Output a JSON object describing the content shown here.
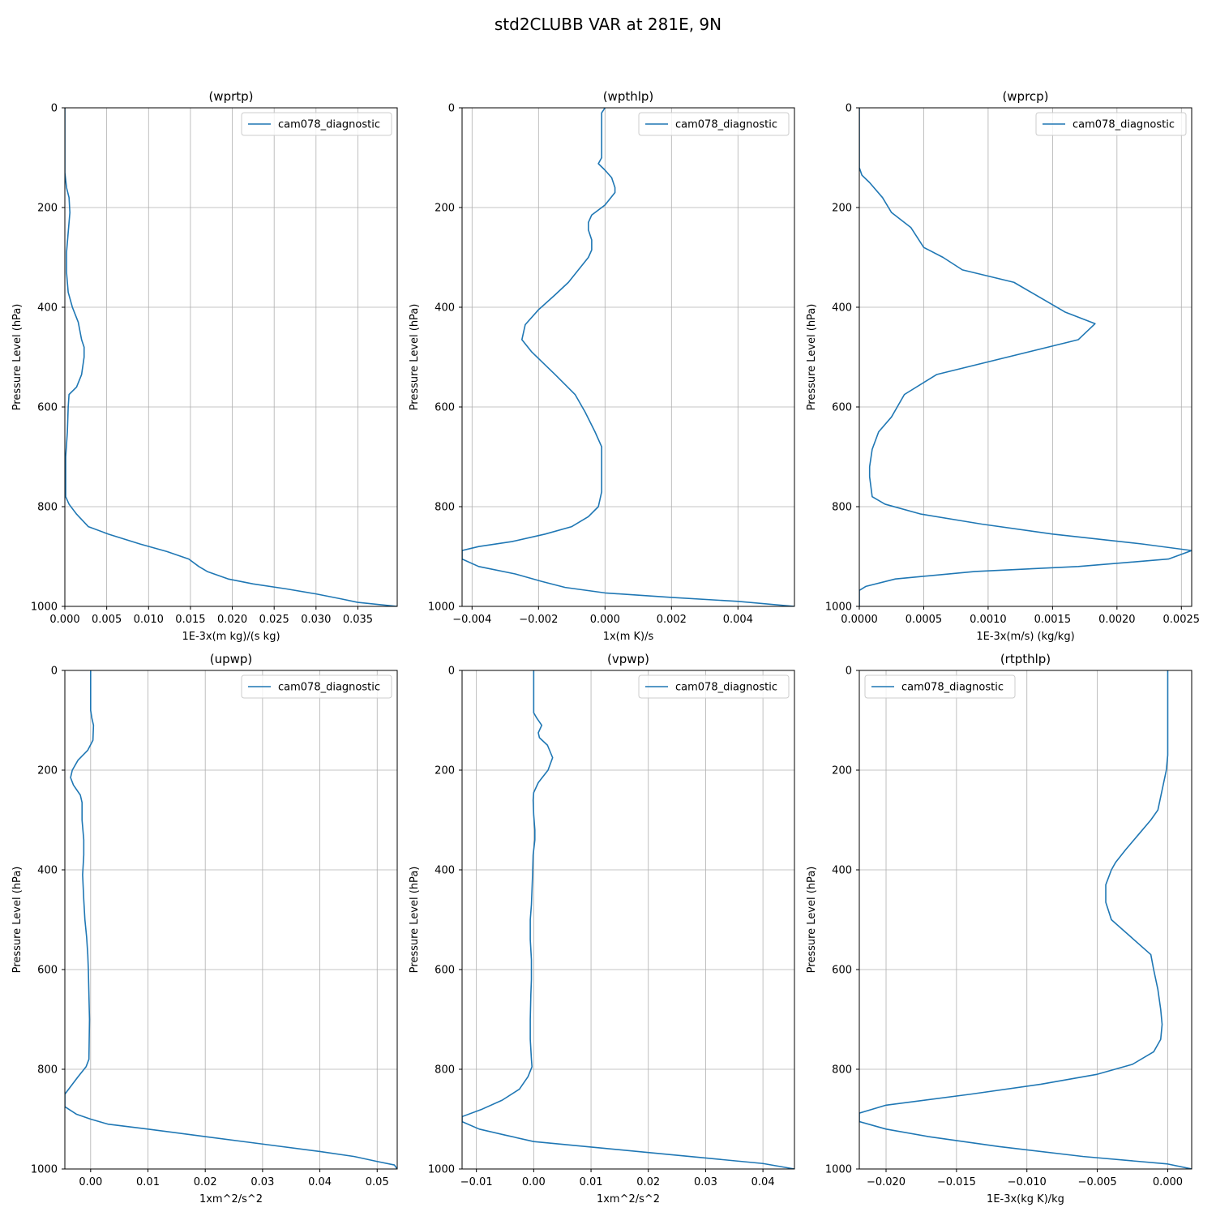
{
  "figure": {
    "suptitle": "std2CLUBB VAR at 281E, 9N"
  },
  "colors": {
    "line": "#1f77b4",
    "grid": "#b0b0b0",
    "axis": "#000000"
  },
  "chart_data": [
    {
      "type": "line",
      "title": "(wprtp)",
      "xlabel": "1E-3x(m kg)/(s kg)",
      "ylabel": "Pressure Level (hPa)",
      "xlim": [
        0,
        0.0397
      ],
      "ylim": [
        1000,
        0
      ],
      "xticks": [
        0,
        0.005,
        0.01,
        0.015,
        0.02,
        0.025,
        0.03,
        0.035
      ],
      "xticklabels": [
        "0.000",
        "0.005",
        "0.010",
        "0.015",
        "0.020",
        "0.025",
        "0.030",
        "0.035"
      ],
      "yticks": [
        0,
        200,
        400,
        600,
        800,
        1000
      ],
      "yticklabels": [
        "0",
        "200",
        "400",
        "600",
        "800",
        "1000"
      ],
      "legend": "top-right",
      "grid": true,
      "series": [
        {
          "name": "cam078_diagnostic",
          "x": [
            0,
            0,
            0.0002,
            0.0005,
            0.0006,
            0.0004,
            0.0002,
            0.0002,
            0.0004,
            0.0009,
            0.0016,
            0.002,
            0.0023,
            0.0023,
            0.002,
            0.0014,
            0.0005,
            0.0004,
            0.0003,
            0.0001,
            0.0001,
            0.0005,
            0.0014,
            0.0028,
            0.0052,
            0.009,
            0.0122,
            0.0148,
            0.016,
            0.017,
            0.0195,
            0.0225,
            0.0265,
            0.03,
            0.033,
            0.035,
            0.0397
          ],
          "y": [
            0,
            130,
            160,
            180,
            210,
            250,
            290,
            330,
            370,
            400,
            430,
            465,
            480,
            500,
            535,
            560,
            575,
            600,
            650,
            700,
            780,
            795,
            815,
            840,
            855,
            875,
            890,
            905,
            920,
            930,
            945,
            955,
            965,
            975,
            985,
            992,
            1000
          ]
        }
      ]
    },
    {
      "type": "line",
      "title": "(wpthlp)",
      "xlabel": "1x(m K)/s",
      "ylabel": "Pressure Level (hPa)",
      "xlim": [
        -0.0043,
        0.0057
      ],
      "ylim": [
        1000,
        0
      ],
      "xticks": [
        -0.004,
        -0.002,
        0,
        0.002,
        0.004
      ],
      "xticklabels": [
        "−0.004",
        "−0.002",
        "0.000",
        "0.002",
        "0.004"
      ],
      "yticks": [
        0,
        200,
        400,
        600,
        800,
        1000
      ],
      "yticklabels": [
        "0",
        "200",
        "400",
        "600",
        "800",
        "1000"
      ],
      "legend": "top-right",
      "grid": true,
      "series": [
        {
          "name": "cam078_diagnostic",
          "x": [
            0,
            -0.0001,
            -0.0001,
            -0.0001,
            -0.0001,
            -0.0002,
            0,
            0.0002,
            0.0003,
            0.0003,
            0,
            -0.0004,
            -0.0005,
            -0.0005,
            -0.0004,
            -0.0004,
            -0.0005,
            -0.0008,
            -0.0011,
            -0.0015,
            -0.002,
            -0.0024,
            -0.0025,
            -0.0022,
            -0.0015,
            -0.0009,
            -0.0006,
            -0.0003,
            -0.0001,
            -0.0001,
            -0.0001,
            -0.0002,
            -0.0005,
            -0.001,
            -0.0018,
            -0.0028,
            -0.0038,
            -0.0043,
            -0.0043,
            -0.0038,
            -0.0027,
            -0.0019,
            -0.0012,
            0,
            0.002,
            0.004,
            0.0057
          ],
          "y": [
            0,
            10,
            50,
            90,
            100,
            112,
            125,
            140,
            160,
            170,
            195,
            215,
            230,
            245,
            265,
            285,
            300,
            325,
            350,
            375,
            405,
            435,
            465,
            490,
            535,
            575,
            610,
            650,
            680,
            720,
            770,
            800,
            820,
            840,
            855,
            870,
            880,
            888,
            905,
            920,
            935,
            950,
            962,
            973,
            982,
            990,
            1000
          ]
        }
      ]
    },
    {
      "type": "line",
      "title": "(wprcp)",
      "xlabel": "1E-3x(m/s) (kg/kg)",
      "ylabel": "Pressure Level (hPa)",
      "xlim": [
        0,
        0.00258
      ],
      "ylim": [
        1000,
        0
      ],
      "xticks": [
        0,
        0.0005,
        0.001,
        0.0015,
        0.002,
        0.0025
      ],
      "xticklabels": [
        "0.0000",
        "0.0005",
        "0.0010",
        "0.0015",
        "0.0020",
        "0.0025"
      ],
      "yticks": [
        0,
        200,
        400,
        600,
        800,
        1000
      ],
      "yticklabels": [
        "0",
        "200",
        "400",
        "600",
        "800",
        "1000"
      ],
      "legend": "top-right",
      "grid": true,
      "series": [
        {
          "name": "cam078_diagnostic",
          "x": [
            0,
            0,
            2e-05,
            8e-05,
            0.00018,
            0.00025,
            0.0004,
            0.0005,
            0.00065,
            0.0008,
            0.0012,
            0.0016,
            0.00183,
            0.0017,
            0.0006,
            0.00035,
            0.00025,
            0.00015,
            0.0001,
            8e-05,
            8e-05,
            0.0001,
            0.0002,
            0.00048,
            0.00095,
            0.0015,
            0.0022,
            0.00258,
            0.0024,
            0.0017,
            0.0009,
            0.00028,
            5e-05,
            0,
            0,
            0
          ],
          "y": [
            0,
            120,
            135,
            150,
            180,
            210,
            240,
            280,
            300,
            325,
            350,
            410,
            433,
            465,
            535,
            575,
            620,
            650,
            685,
            720,
            740,
            780,
            795,
            815,
            835,
            855,
            875,
            888,
            905,
            920,
            930,
            945,
            960,
            968,
            990,
            1000
          ]
        }
      ]
    },
    {
      "type": "line",
      "title": "(upwp)",
      "xlabel": "1xm^2/s^2",
      "ylabel": "Pressure Level (hPa)",
      "xlim": [
        -0.0045,
        0.0535
      ],
      "ylim": [
        1000,
        0
      ],
      "xticks": [
        0,
        0.01,
        0.02,
        0.03,
        0.04,
        0.05
      ],
      "xticklabels": [
        "0.00",
        "0.01",
        "0.02",
        "0.03",
        "0.04",
        "0.05"
      ],
      "yticks": [
        0,
        200,
        400,
        600,
        800,
        1000
      ],
      "yticklabels": [
        "0",
        "200",
        "400",
        "600",
        "800",
        "1000"
      ],
      "legend": "top-right",
      "grid": true,
      "series": [
        {
          "name": "cam078_diagnostic",
          "x": [
            0,
            0,
            0,
            0.0002,
            0.0005,
            0.0004,
            -0.0005,
            -0.0022,
            -0.0032,
            -0.0035,
            -0.003,
            -0.0018,
            -0.0015,
            -0.0015,
            -0.0012,
            -0.0012,
            -0.0014,
            -0.0012,
            -0.001,
            -0.0007,
            -0.0005,
            -0.0004,
            -0.0003,
            -0.0002,
            -0.0003,
            -0.0008,
            -0.0022,
            -0.0045,
            -0.0045,
            -0.0025,
            0,
            0.003,
            0.01,
            0.02,
            0.03,
            0.04,
            0.046,
            0.05,
            0.053,
            0.0535
          ],
          "y": [
            0,
            50,
            80,
            95,
            110,
            140,
            160,
            180,
            200,
            215,
            230,
            250,
            265,
            300,
            340,
            370,
            410,
            460,
            500,
            535,
            570,
            600,
            650,
            700,
            780,
            795,
            815,
            850,
            875,
            890,
            900,
            910,
            920,
            935,
            950,
            965,
            975,
            985,
            992,
            1000
          ]
        }
      ]
    },
    {
      "type": "line",
      "title": "(vpwp)",
      "xlabel": "1xm^2/s^2",
      "ylabel": "Pressure Level (hPa)",
      "xlim": [
        -0.0125,
        0.0455
      ],
      "ylim": [
        1000,
        0
      ],
      "xticks": [
        -0.01,
        0,
        0.01,
        0.02,
        0.03,
        0.04
      ],
      "xticklabels": [
        "−0.01",
        "0.00",
        "0.01",
        "0.02",
        "0.03",
        "0.04"
      ],
      "yticks": [
        0,
        200,
        400,
        600,
        800,
        1000
      ],
      "yticklabels": [
        "0",
        "200",
        "400",
        "600",
        "800",
        "1000"
      ],
      "legend": "top-right",
      "grid": true,
      "series": [
        {
          "name": "cam078_diagnostic",
          "x": [
            0,
            0,
            0,
            0.0005,
            0.0014,
            0.0008,
            0.001,
            0.0024,
            0.0033,
            0.0025,
            0.0008,
            0,
            -0.0001,
            0,
            0.0002,
            0.0002,
            -0.0001,
            -0.0002,
            -0.0003,
            -0.0004,
            -0.0006,
            -0.0006,
            -0.0004,
            -0.0004,
            -0.0005,
            -0.0006,
            -0.0006,
            -0.0005,
            -0.0004,
            -0.0003,
            -0.001,
            -0.0025,
            -0.0055,
            -0.009,
            -0.0125,
            -0.0125,
            -0.0095,
            -0.005,
            0,
            0.01,
            0.02,
            0.03,
            0.04,
            0.0455
          ],
          "y": [
            0,
            50,
            85,
            95,
            110,
            125,
            135,
            150,
            175,
            200,
            225,
            245,
            260,
            290,
            320,
            340,
            370,
            410,
            440,
            470,
            500,
            540,
            580,
            620,
            650,
            700,
            740,
            760,
            780,
            795,
            815,
            840,
            862,
            880,
            895,
            905,
            920,
            932,
            945,
            956,
            967,
            978,
            989,
            1000
          ]
        }
      ]
    },
    {
      "type": "line",
      "title": "(rtpthlp)",
      "xlabel": "1E-3x(kg K)/kg",
      "ylabel": "Pressure Level (hPa)",
      "xlim": [
        -0.0219,
        0.0017
      ],
      "ylim": [
        1000,
        0
      ],
      "xticks": [
        -0.02,
        -0.015,
        -0.01,
        -0.005,
        0
      ],
      "xticklabels": [
        "−0.020",
        "−0.015",
        "−0.010",
        "−0.005",
        "0.000"
      ],
      "yticks": [
        0,
        200,
        400,
        600,
        800,
        1000
      ],
      "yticklabels": [
        "0",
        "200",
        "400",
        "600",
        "800",
        "1000"
      ],
      "legend": "top-left",
      "grid": true,
      "series": [
        {
          "name": "cam078_diagnostic",
          "x": [
            0,
            0,
            0,
            0,
            -0.0001,
            -0.0004,
            -0.0007,
            -0.0012,
            -0.0021,
            -0.003,
            -0.0037,
            -0.004,
            -0.0044,
            -0.0044,
            -0.004,
            -0.0026,
            -0.0012,
            -0.001,
            -0.0007,
            -0.0005,
            -0.0004,
            -0.0005,
            -0.001,
            -0.0025,
            -0.005,
            -0.009,
            -0.014,
            -0.02,
            -0.0219,
            -0.0219,
            -0.02,
            -0.017,
            -0.012,
            -0.006,
            0,
            0.0017
          ],
          "y": [
            0,
            50,
            100,
            170,
            200,
            240,
            280,
            300,
            330,
            360,
            385,
            400,
            430,
            465,
            500,
            535,
            570,
            600,
            640,
            680,
            710,
            740,
            765,
            790,
            810,
            830,
            850,
            872,
            888,
            905,
            920,
            935,
            955,
            975,
            990,
            1000
          ]
        }
      ]
    }
  ]
}
